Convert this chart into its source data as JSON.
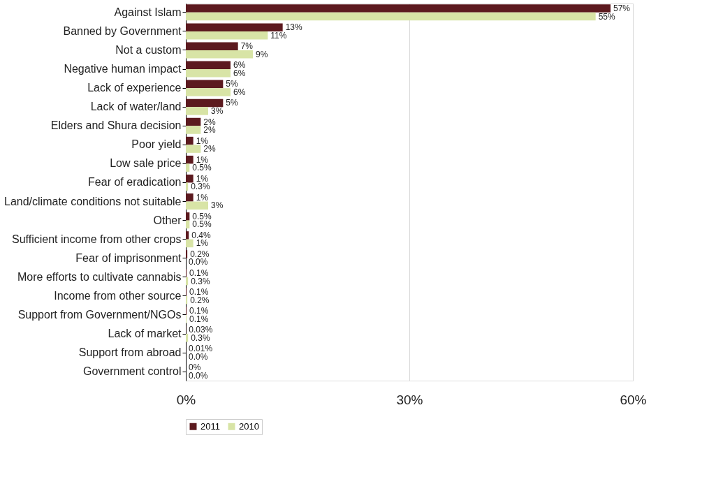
{
  "chart_data": {
    "type": "bar",
    "orientation": "horizontal",
    "categories": [
      "Against Islam",
      "Banned by Government",
      "Not a custom",
      "Negative human impact",
      "Lack of experience",
      "Lack of water/land",
      "Elders and Shura decision",
      "Poor yield",
      "Low sale price",
      "Fear of eradication",
      "Land/climate conditions not suitable",
      "Other",
      "Sufficient income from other crops",
      "Fear of imprisonment",
      "More efforts to cultivate cannabis",
      "Income from other source",
      "Support from Government/NGOs",
      "Lack of market",
      "Support from abroad",
      "Government control"
    ],
    "series": [
      {
        "name": "2011",
        "color": "#5c1a1f",
        "values": [
          57,
          13,
          7,
          6,
          5,
          5,
          2,
          1,
          1,
          1,
          1,
          0.5,
          0.4,
          0.2,
          0.1,
          0.1,
          0.1,
          0.03,
          0.01,
          0
        ],
        "value_labels": [
          "57%",
          "13%",
          "7%",
          "6%",
          "5%",
          "5%",
          "2%",
          "1%",
          "1%",
          "1%",
          "1%",
          "0.5%",
          "0.4%",
          "0.2%",
          "0.1%",
          "0.1%",
          "0.1%",
          "0.03%",
          "0.01%",
          "0%"
        ]
      },
      {
        "name": "2010",
        "color": "#d8e4a6",
        "values": [
          55,
          11,
          9,
          6,
          6,
          3,
          2,
          2,
          0.5,
          0.3,
          3,
          0.5,
          1,
          0,
          0.3,
          0.2,
          0.1,
          0.3,
          0,
          0
        ],
        "value_labels": [
          "55%",
          "11%",
          "9%",
          "6%",
          "6%",
          "3%",
          "2%",
          "2%",
          "0.5%",
          "0.3%",
          "3%",
          "0.5%",
          "1%",
          "0.0%",
          "0.3%",
          "0.2%",
          "0.1%",
          "0.3%",
          "0.0%",
          "0.0%"
        ]
      }
    ],
    "xlim": [
      0,
      60
    ],
    "xticks": [
      {
        "value": 0,
        "label": "0%"
      },
      {
        "value": 30,
        "label": "30%"
      },
      {
        "value": 60,
        "label": "60%"
      }
    ],
    "grid": "x",
    "legend": "bottom"
  }
}
